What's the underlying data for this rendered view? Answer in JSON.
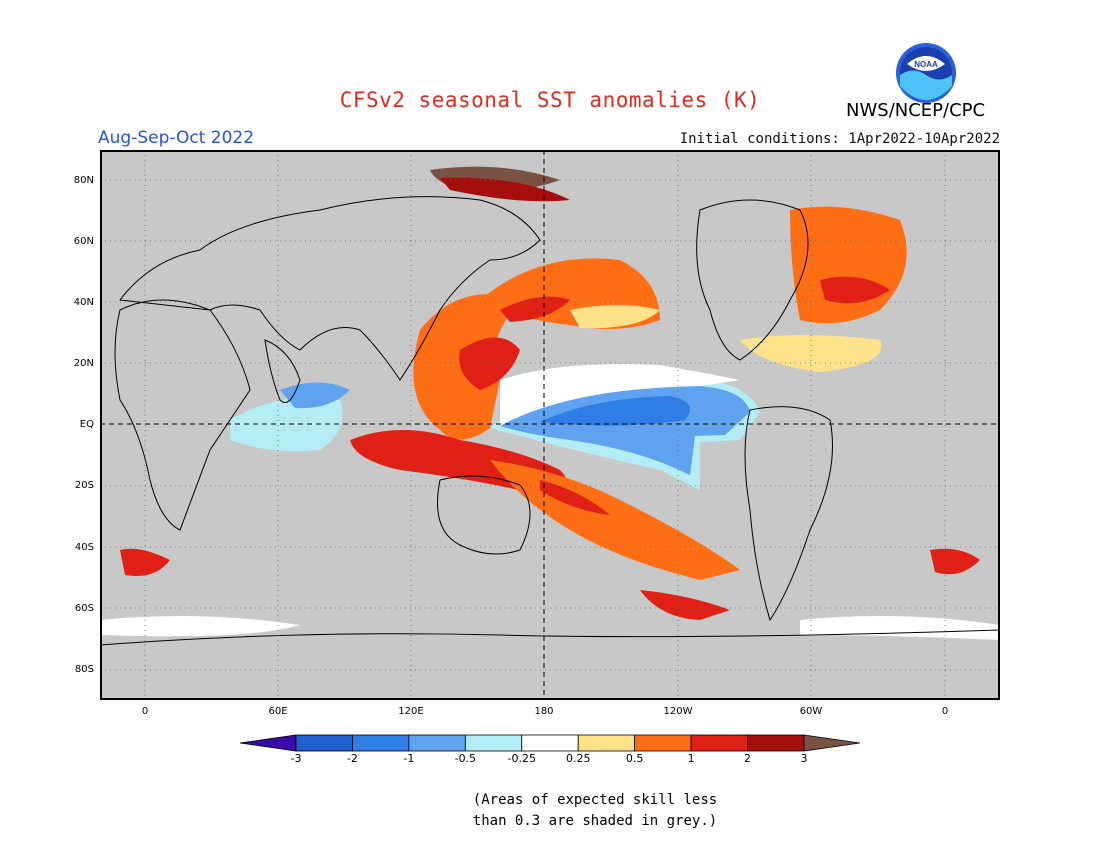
{
  "title": "CFSv2 seasonal SST anomalies (K)",
  "period": "Aug-Sep-Oct 2022",
  "organization": "NWS/NCEP/CPC",
  "initial_conditions": "Initial conditions: 1Apr2022-10Apr2022",
  "logo_text": "NOAA",
  "lat_labels": [
    "80N",
    "60N",
    "40N",
    "20N",
    "EQ",
    "20S",
    "40S",
    "60S",
    "80S"
  ],
  "lon_labels": [
    "0",
    "60E",
    "120E",
    "180",
    "120W",
    "60W",
    "0"
  ],
  "colorbar": {
    "tick_labels": [
      "-3",
      "-2",
      "-1",
      "-0.5",
      "-0.25",
      "0.25",
      "0.5",
      "1",
      "2",
      "3"
    ],
    "colors": [
      "#3a0aa6",
      "#1f5fcf",
      "#2f7ee6",
      "#5fa3f0",
      "#b3ecf5",
      "#ffffff",
      "#fde28a",
      "#ff6d14",
      "#e02014",
      "#a60e0e",
      "#7a5244"
    ]
  },
  "note_lines": [
    "(Areas of expected skill less",
    "than 0.3 are shaded in grey.)"
  ],
  "colors": {
    "title": "#e0281e",
    "period": "#2352e6",
    "grey_mask": "#c8c8c8"
  }
}
